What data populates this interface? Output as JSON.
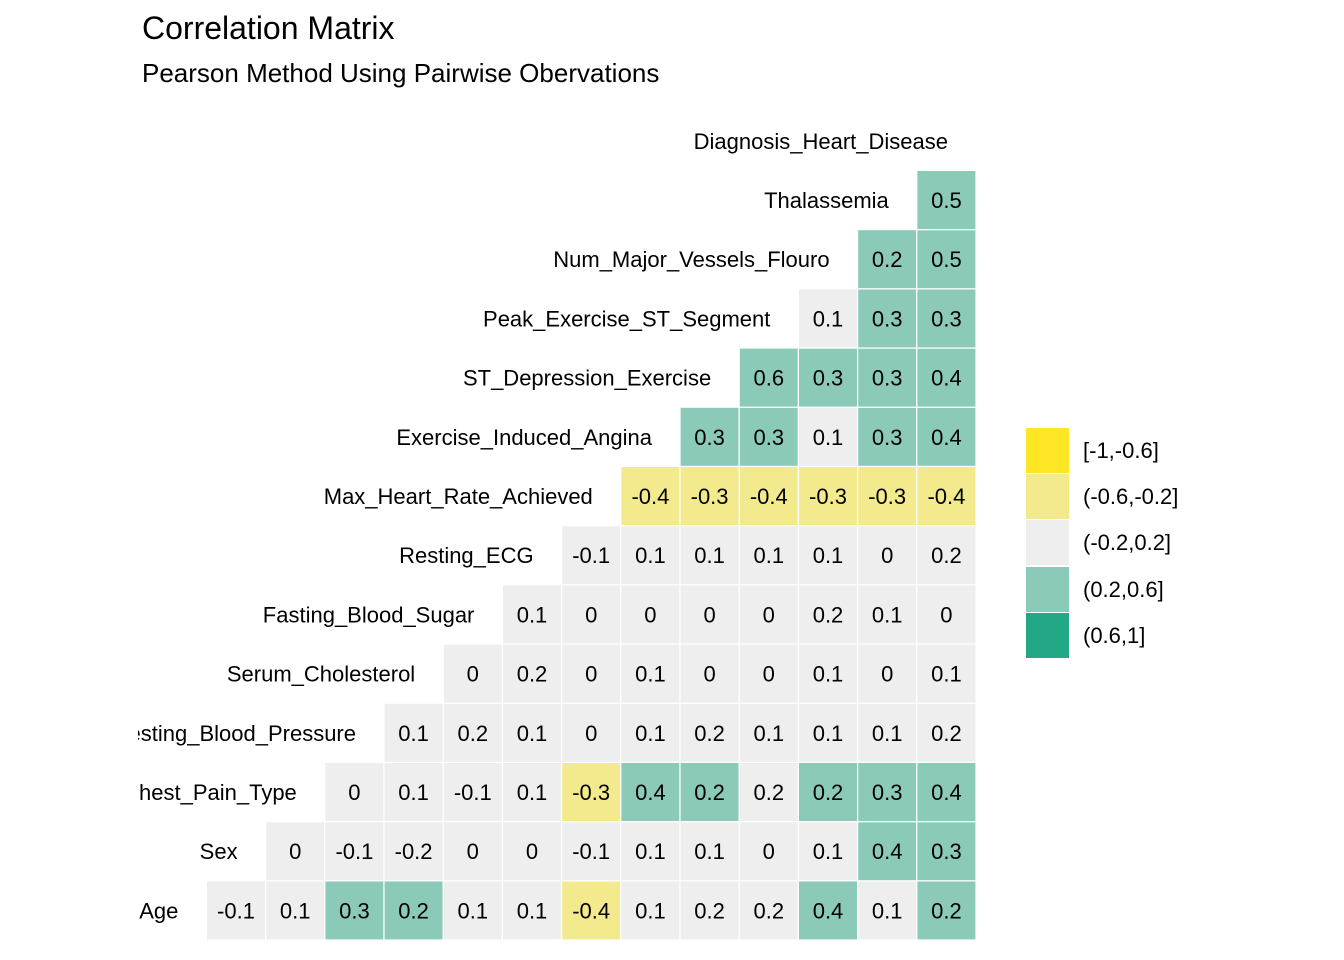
{
  "title": "Correlation Matrix",
  "subtitle": "Pearson Method Using Pairwise Obervations",
  "colors": {
    "strong_negative": "#fde725",
    "moderate_negative": "#f3e98d",
    "weak": "#eeeeee",
    "moderate_positive": "#8bc9b9",
    "strong_positive": "#22a884",
    "cell_border": "#ffffff",
    "text": "#000000"
  },
  "legend": {
    "items": [
      {
        "label": "[-1,-0.6]",
        "color": "#fde725"
      },
      {
        "label": "(-0.6,-0.2]",
        "color": "#f3e98d"
      },
      {
        "label": "(-0.2,0.2]",
        "color": "#eeeeee"
      },
      {
        "label": "(0.2,0.6]",
        "color": "#8bc9b9"
      },
      {
        "label": "(0.6,1]",
        "color": "#22a884"
      }
    ]
  },
  "chart_data": {
    "type": "heatmap",
    "title": "Correlation Matrix",
    "subtitle": "Pearson Method Using Pairwise Obervations",
    "variables": [
      "Age",
      "Sex",
      "Chest_Pain_Type",
      "Resting_Blood_Pressure",
      "Serum_Cholesterol",
      "Fasting_Blood_Sugar",
      "Resting_ECG",
      "Max_Heart_Rate_Achieved",
      "Exercise_Induced_Angina",
      "ST_Depression_Exercise",
      "Peak_Exercise_ST_Segment",
      "Num_Major_Vessels_Flouro",
      "Thalassemia",
      "Diagnosis_Heart_Disease"
    ],
    "values": [
      [
        -0.1,
        0.1,
        0.3,
        0.2,
        0.1,
        0.1,
        -0.4,
        0.1,
        0.2,
        0.2,
        0.4,
        0.1,
        0.2
      ],
      [
        0,
        -0.1,
        -0.2,
        0,
        0,
        -0.1,
        0.1,
        0.1,
        0,
        0.1,
        0.4,
        0.3
      ],
      [
        0,
        0.1,
        -0.1,
        0.1,
        -0.3,
        0.4,
        0.2,
        0.2,
        0.2,
        0.3,
        0.4
      ],
      [
        0.1,
        0.2,
        0.1,
        0,
        0.1,
        0.2,
        0.1,
        0.1,
        0.1,
        0.2
      ],
      [
        0,
        0.2,
        0,
        0.1,
        0,
        0,
        0.1,
        0,
        0.1
      ],
      [
        0.1,
        0,
        0,
        0,
        0,
        0.2,
        0.1,
        0
      ],
      [
        -0.1,
        0.1,
        0.1,
        0.1,
        0.1,
        0,
        0.2
      ],
      [
        -0.4,
        -0.3,
        -0.4,
        -0.3,
        -0.3,
        -0.4
      ],
      [
        0.3,
        0.3,
        0.1,
        0.3,
        0.4
      ],
      [
        0.6,
        0.3,
        0.3,
        0.4
      ],
      [
        0.1,
        0.3,
        0.3
      ],
      [
        0.2,
        0.5
      ],
      [
        0.5
      ]
    ],
    "bins": [
      "[-1,-0.6]",
      "(-0.6,-0.2]",
      "(-0.2,0.2]",
      "(0.2,0.6]",
      "(0.6,1]"
    ],
    "bin_assignments": [
      [
        2,
        2,
        3,
        3,
        2,
        2,
        1,
        2,
        2,
        2,
        3,
        2,
        3
      ],
      [
        2,
        2,
        2,
        2,
        2,
        2,
        2,
        2,
        2,
        2,
        3,
        3
      ],
      [
        2,
        2,
        2,
        2,
        1,
        3,
        3,
        2,
        3,
        3,
        3
      ],
      [
        2,
        2,
        2,
        2,
        2,
        2,
        2,
        2,
        2,
        2
      ],
      [
        2,
        2,
        2,
        2,
        2,
        2,
        2,
        2,
        2
      ],
      [
        2,
        2,
        2,
        2,
        2,
        2,
        2,
        2
      ],
      [
        2,
        2,
        2,
        2,
        2,
        2,
        2
      ],
      [
        1,
        1,
        1,
        1,
        1,
        1
      ],
      [
        3,
        3,
        2,
        3,
        3
      ],
      [
        3,
        3,
        3,
        3
      ],
      [
        2,
        3,
        3
      ],
      [
        3,
        3
      ],
      [
        3
      ]
    ]
  }
}
